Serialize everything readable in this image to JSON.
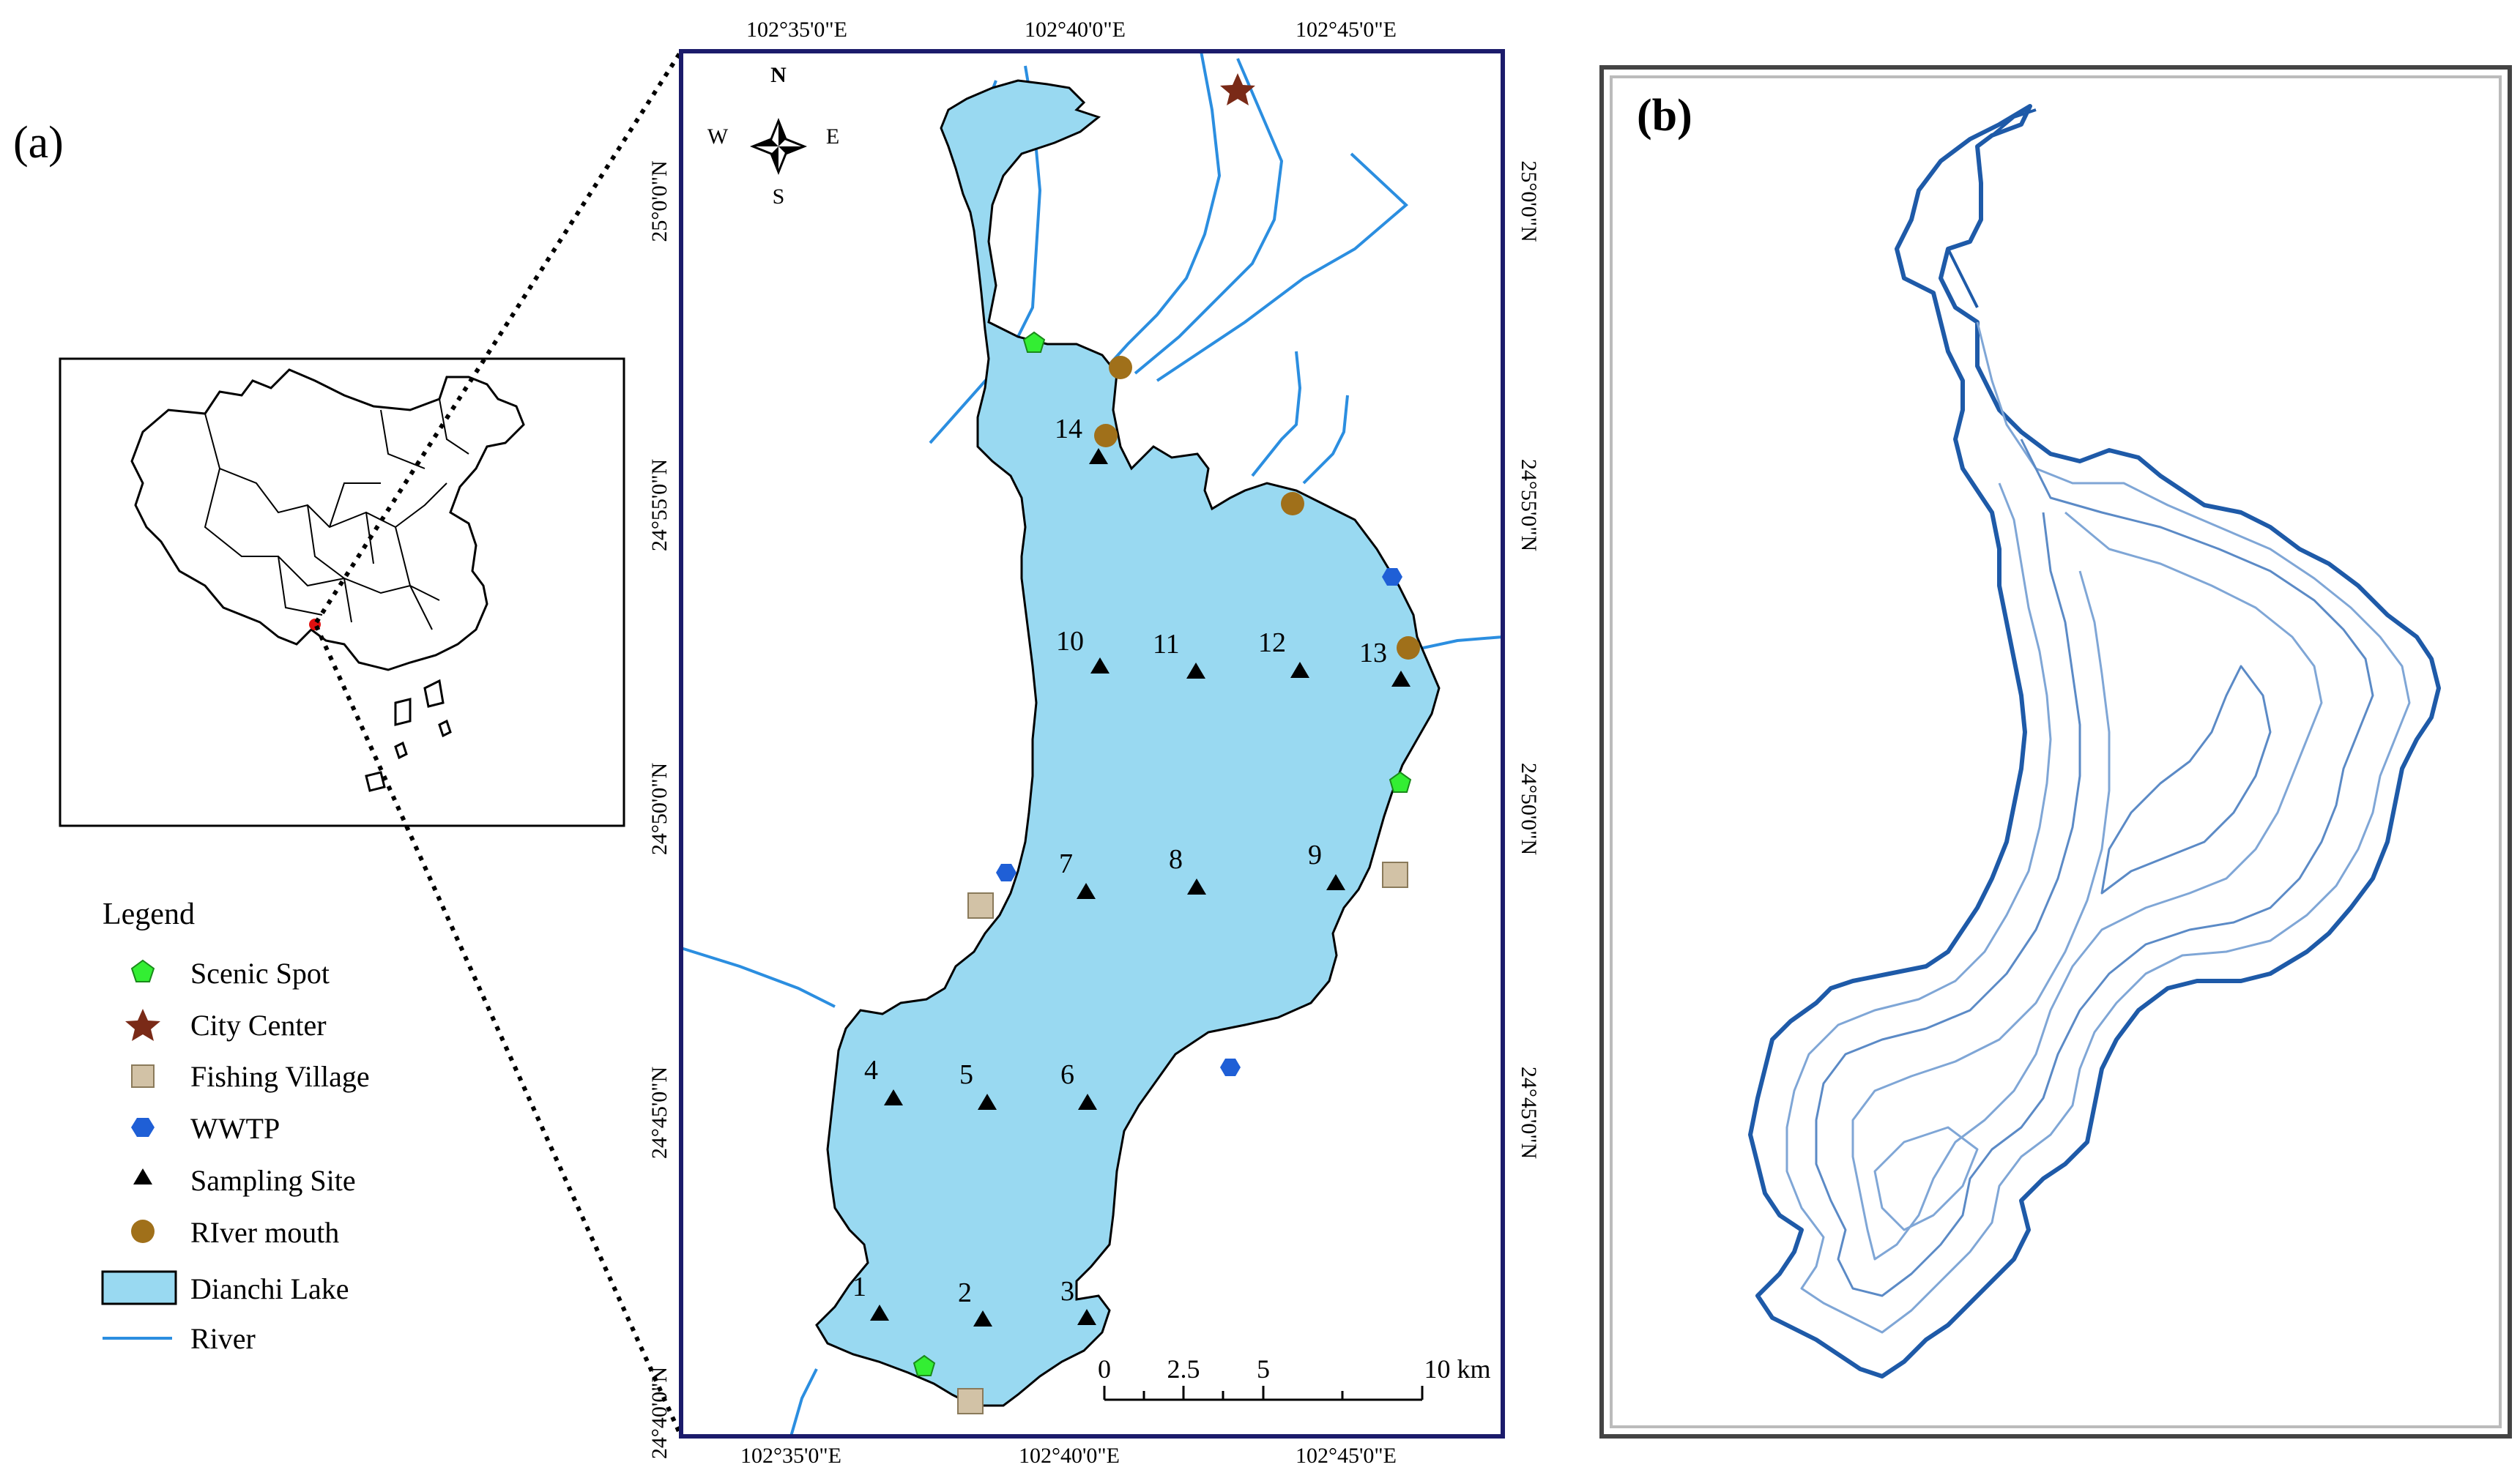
{
  "panel_a": {
    "label": "(a)",
    "north_arrow": {
      "n": "N",
      "s": "S",
      "e": "E",
      "w": "W",
      "icon": "compass-rose-icon"
    },
    "top_lon_labels": [
      "102°35'0\"E",
      "102°40'0\"E",
      "102°45'0\"E"
    ],
    "bottom_lon_labels": [
      "102°35'0\"E",
      "102°40'0\"E",
      "102°45'0\"E"
    ],
    "left_lat_labels": [
      "25°0'0\"N",
      "24°55'0\"N",
      "24°50'0\"N",
      "24°45'0\"N",
      "24°40'0\"N"
    ],
    "right_lat_labels": [
      "25°0'0\"N",
      "24°55'0\"N",
      "24°50'0\"N",
      "24°45'0\"N"
    ],
    "scale_bar": {
      "ticks": [
        "0",
        "2.5",
        "5",
        "10 km"
      ]
    },
    "site_numbers": [
      "1",
      "2",
      "3",
      "4",
      "5",
      "6",
      "7",
      "8",
      "9",
      "10",
      "11",
      "12",
      "13",
      "14"
    ],
    "legend": {
      "title": "Legend",
      "items": [
        {
          "label": "Scenic Spot",
          "icon": "pentagon-icon",
          "color": "#33ee33"
        },
        {
          "label": "City Center",
          "icon": "star-icon",
          "color": "#7a2a17"
        },
        {
          "label": "Fishing Village",
          "icon": "square-icon",
          "color": "#d2c2a6"
        },
        {
          "label": "WWTP",
          "icon": "hexagon-icon",
          "color": "#1f5fd6"
        },
        {
          "label": "Sampling Site",
          "icon": "triangle-icon",
          "color": "#000000"
        },
        {
          "label": "RIver mouth",
          "icon": "circle-icon",
          "color": "#a0701a"
        },
        {
          "label": "Dianchi Lake",
          "icon": "lake-swatch-icon",
          "color": "#99d9f1"
        },
        {
          "label": "River",
          "icon": "river-line-icon",
          "color": "#2b8ee0"
        }
      ]
    },
    "colors": {
      "lake": "#99d9f1",
      "river": "#2b8ee0",
      "frame": "#1b1b6b"
    }
  },
  "panel_b": {
    "label": "(b)",
    "colors": {
      "contour_dark": "#1e5aa8",
      "contour_light": "#7fa6d6",
      "frame": "#444444"
    }
  }
}
